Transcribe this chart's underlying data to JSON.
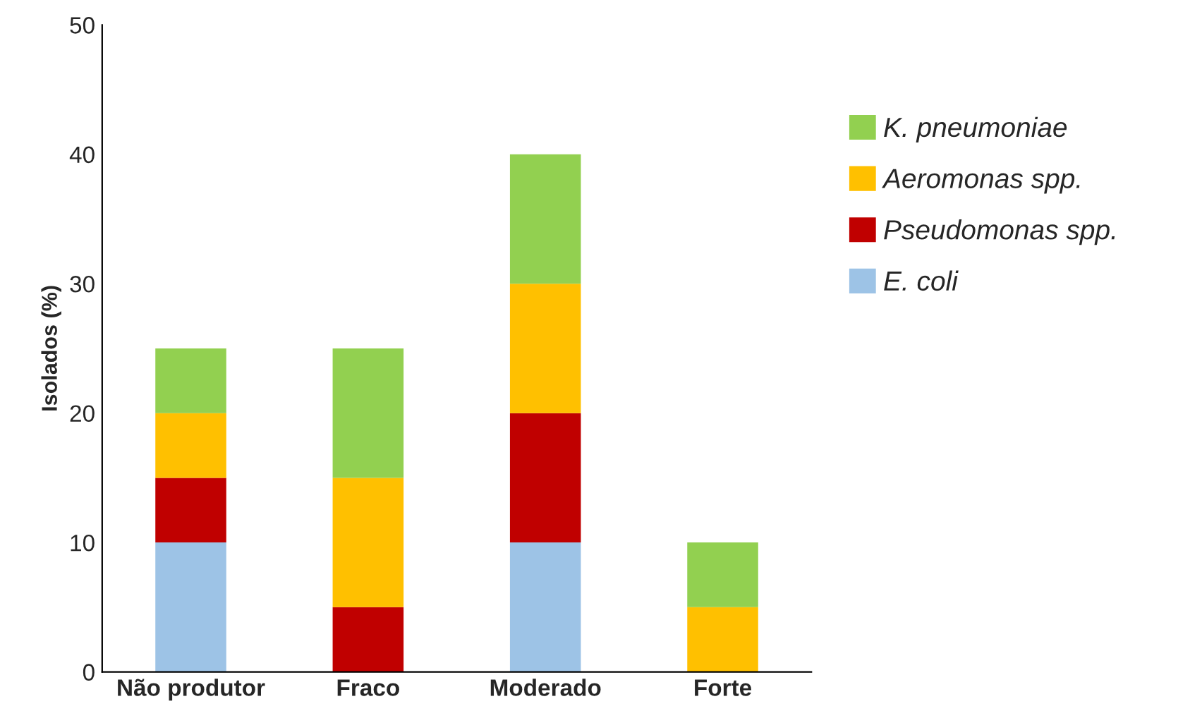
{
  "chart_data": {
    "type": "bar",
    "stacked": true,
    "ylabel": "Isolados (%)",
    "categories": [
      "Não produtor",
      "Fraco",
      "Moderado",
      "Forte"
    ],
    "series": [
      {
        "name": "E. coli",
        "color": "#9dc3e6",
        "values": [
          10,
          0,
          10,
          0
        ]
      },
      {
        "name": "Pseudomonas spp.",
        "color": "#c00000",
        "values": [
          5,
          5,
          10,
          0
        ]
      },
      {
        "name": "Aeromonas spp.",
        "color": "#ffc000",
        "values": [
          5,
          10,
          10,
          5
        ]
      },
      {
        "name": "K. pneumoniae",
        "color": "#92d050",
        "values": [
          5,
          10,
          10,
          5
        ]
      }
    ],
    "ylim": [
      0,
      50
    ],
    "yticks": [
      0,
      10,
      20,
      30,
      40,
      50
    ],
    "grid": false,
    "legend": "right"
  }
}
